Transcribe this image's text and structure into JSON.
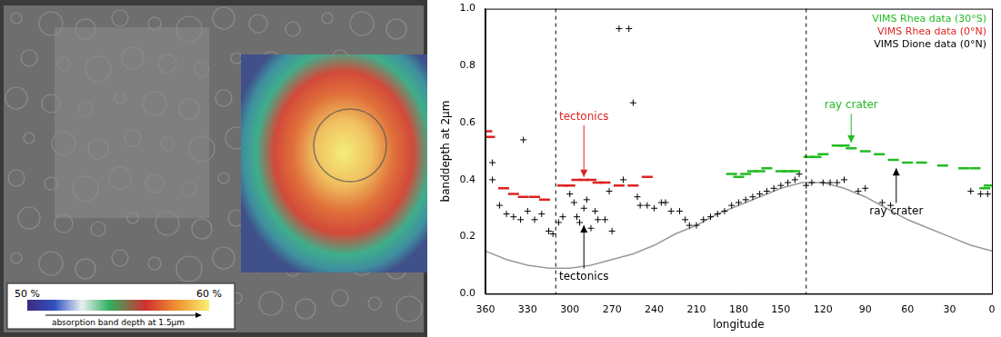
{
  "chart_data": {
    "type": "scatter",
    "x_label": "longitude",
    "y_label": "banddepth at 2µm",
    "xlim": [
      360,
      0
    ],
    "ylim": [
      0,
      1
    ],
    "xticks": [
      360,
      330,
      300,
      270,
      240,
      210,
      180,
      150,
      120,
      90,
      60,
      30,
      0
    ],
    "yticks": [
      {
        "value": 0,
        "label": "0.0"
      },
      0.2,
      0.4,
      0.6,
      0.8,
      {
        "value": 1,
        "label": "1.0"
      }
    ],
    "grid": false,
    "legend": "upper right",
    "series": [
      {
        "name": "VIMS Rhea data (30°S)",
        "color": "#22bb22",
        "marker": "dash",
        "x": [
          185,
          180,
          175,
          170,
          165,
          160,
          150,
          145,
          140,
          130,
          125,
          120,
          110,
          105,
          100,
          90,
          80,
          70,
          60,
          50,
          35,
          20,
          12,
          5,
          2
        ],
        "values": [
          0.42,
          0.41,
          0.42,
          0.43,
          0.43,
          0.44,
          0.43,
          0.43,
          0.43,
          0.48,
          0.48,
          0.49,
          0.52,
          0.52,
          0.51,
          0.5,
          0.49,
          0.47,
          0.46,
          0.46,
          0.45,
          0.44,
          0.44,
          0.37,
          0.38
        ]
      },
      {
        "name": "VIMS Rhea data (0°N)",
        "color": "#dd2222",
        "marker": "dash",
        "x": [
          359,
          357,
          347,
          340,
          333,
          325,
          318,
          305,
          300,
          295,
          290,
          285,
          280,
          275,
          265,
          255,
          245
        ],
        "values": [
          0.57,
          0.55,
          0.37,
          0.35,
          0.34,
          0.34,
          0.33,
          0.38,
          0.38,
          0.4,
          0.4,
          0.4,
          0.39,
          0.39,
          0.38,
          0.38,
          0.41
        ]
      },
      {
        "name": "VIMS Dione data (0°N)",
        "color": "#000000",
        "marker": "cross",
        "x": [
          355,
          355,
          350,
          345,
          340,
          335,
          333,
          330,
          325,
          320,
          315,
          312,
          308,
          305,
          300,
          297,
          295,
          293,
          290,
          288,
          285,
          282,
          280,
          275,
          272,
          270,
          265,
          262,
          258,
          255,
          252,
          250,
          245,
          240,
          235,
          232,
          228,
          222,
          218,
          215,
          210,
          205,
          200,
          195,
          190,
          185,
          180,
          175,
          170,
          165,
          160,
          155,
          150,
          145,
          140,
          137,
          132,
          128,
          120,
          115,
          110,
          105,
          95,
          90,
          78,
          72,
          15,
          8,
          3
        ],
        "values": [
          0.46,
          0.4,
          0.31,
          0.28,
          0.27,
          0.26,
          0.54,
          0.29,
          0.26,
          0.28,
          0.22,
          0.21,
          0.25,
          0.27,
          0.35,
          0.32,
          0.27,
          0.25,
          0.3,
          0.33,
          0.23,
          0.29,
          0.26,
          0.26,
          0.36,
          0.22,
          0.93,
          0.4,
          0.93,
          0.67,
          0.34,
          0.31,
          0.31,
          0.3,
          0.32,
          0.32,
          0.29,
          0.29,
          0.26,
          0.24,
          0.24,
          0.26,
          0.27,
          0.28,
          0.29,
          0.31,
          0.32,
          0.33,
          0.34,
          0.35,
          0.36,
          0.37,
          0.38,
          0.39,
          0.4,
          0.42,
          0.38,
          0.39,
          0.39,
          0.39,
          0.39,
          0.4,
          0.36,
          0.37,
          0.32,
          0.31,
          0.36,
          0.35,
          0.35
        ]
      },
      {
        "type": "line",
        "color": "#999999",
        "marker": "none",
        "line_style": "solid",
        "x": [
          360,
          345,
          330,
          315,
          300,
          285,
          270,
          255,
          240,
          225,
          210,
          195,
          180,
          165,
          150,
          135,
          120,
          105,
          90,
          75,
          60,
          45,
          30,
          15,
          0
        ],
        "values": [
          0.15,
          0.12,
          0.1,
          0.09,
          0.09,
          0.1,
          0.12,
          0.14,
          0.17,
          0.21,
          0.24,
          0.28,
          0.31,
          0.34,
          0.37,
          0.39,
          0.39,
          0.37,
          0.34,
          0.3,
          0.26,
          0.23,
          0.2,
          0.17,
          0.15
        ]
      }
    ],
    "reference_lines": [
      {
        "x": 310,
        "line_style": "dashed"
      },
      {
        "x": 132,
        "line_style": "dashed"
      }
    ],
    "annotations": [
      {
        "text": "tectonics",
        "color": "#dd2222",
        "x": 290,
        "y": 0.62,
        "arrow_y": 0.41
      },
      {
        "text": "ray crater",
        "color": "#22bb22",
        "x": 100,
        "y": 0.66,
        "arrow_y": 0.53
      },
      {
        "text": "tectonics",
        "color": "#000000",
        "x": 290,
        "y": 0.06,
        "arrow_y": 0.24
      },
      {
        "text": "ray crater",
        "color": "#000000",
        "x": 68,
        "y": 0.29,
        "arrow_y": 0.44
      }
    ]
  },
  "image": {
    "colorbar": {
      "range": [
        50,
        60
      ],
      "ticks": [
        {
          "value": 50,
          "label": "50 %"
        },
        {
          "value": 60,
          "label": "60 %"
        }
      ],
      "title": "absorption band depth at 1.5µm"
    }
  }
}
